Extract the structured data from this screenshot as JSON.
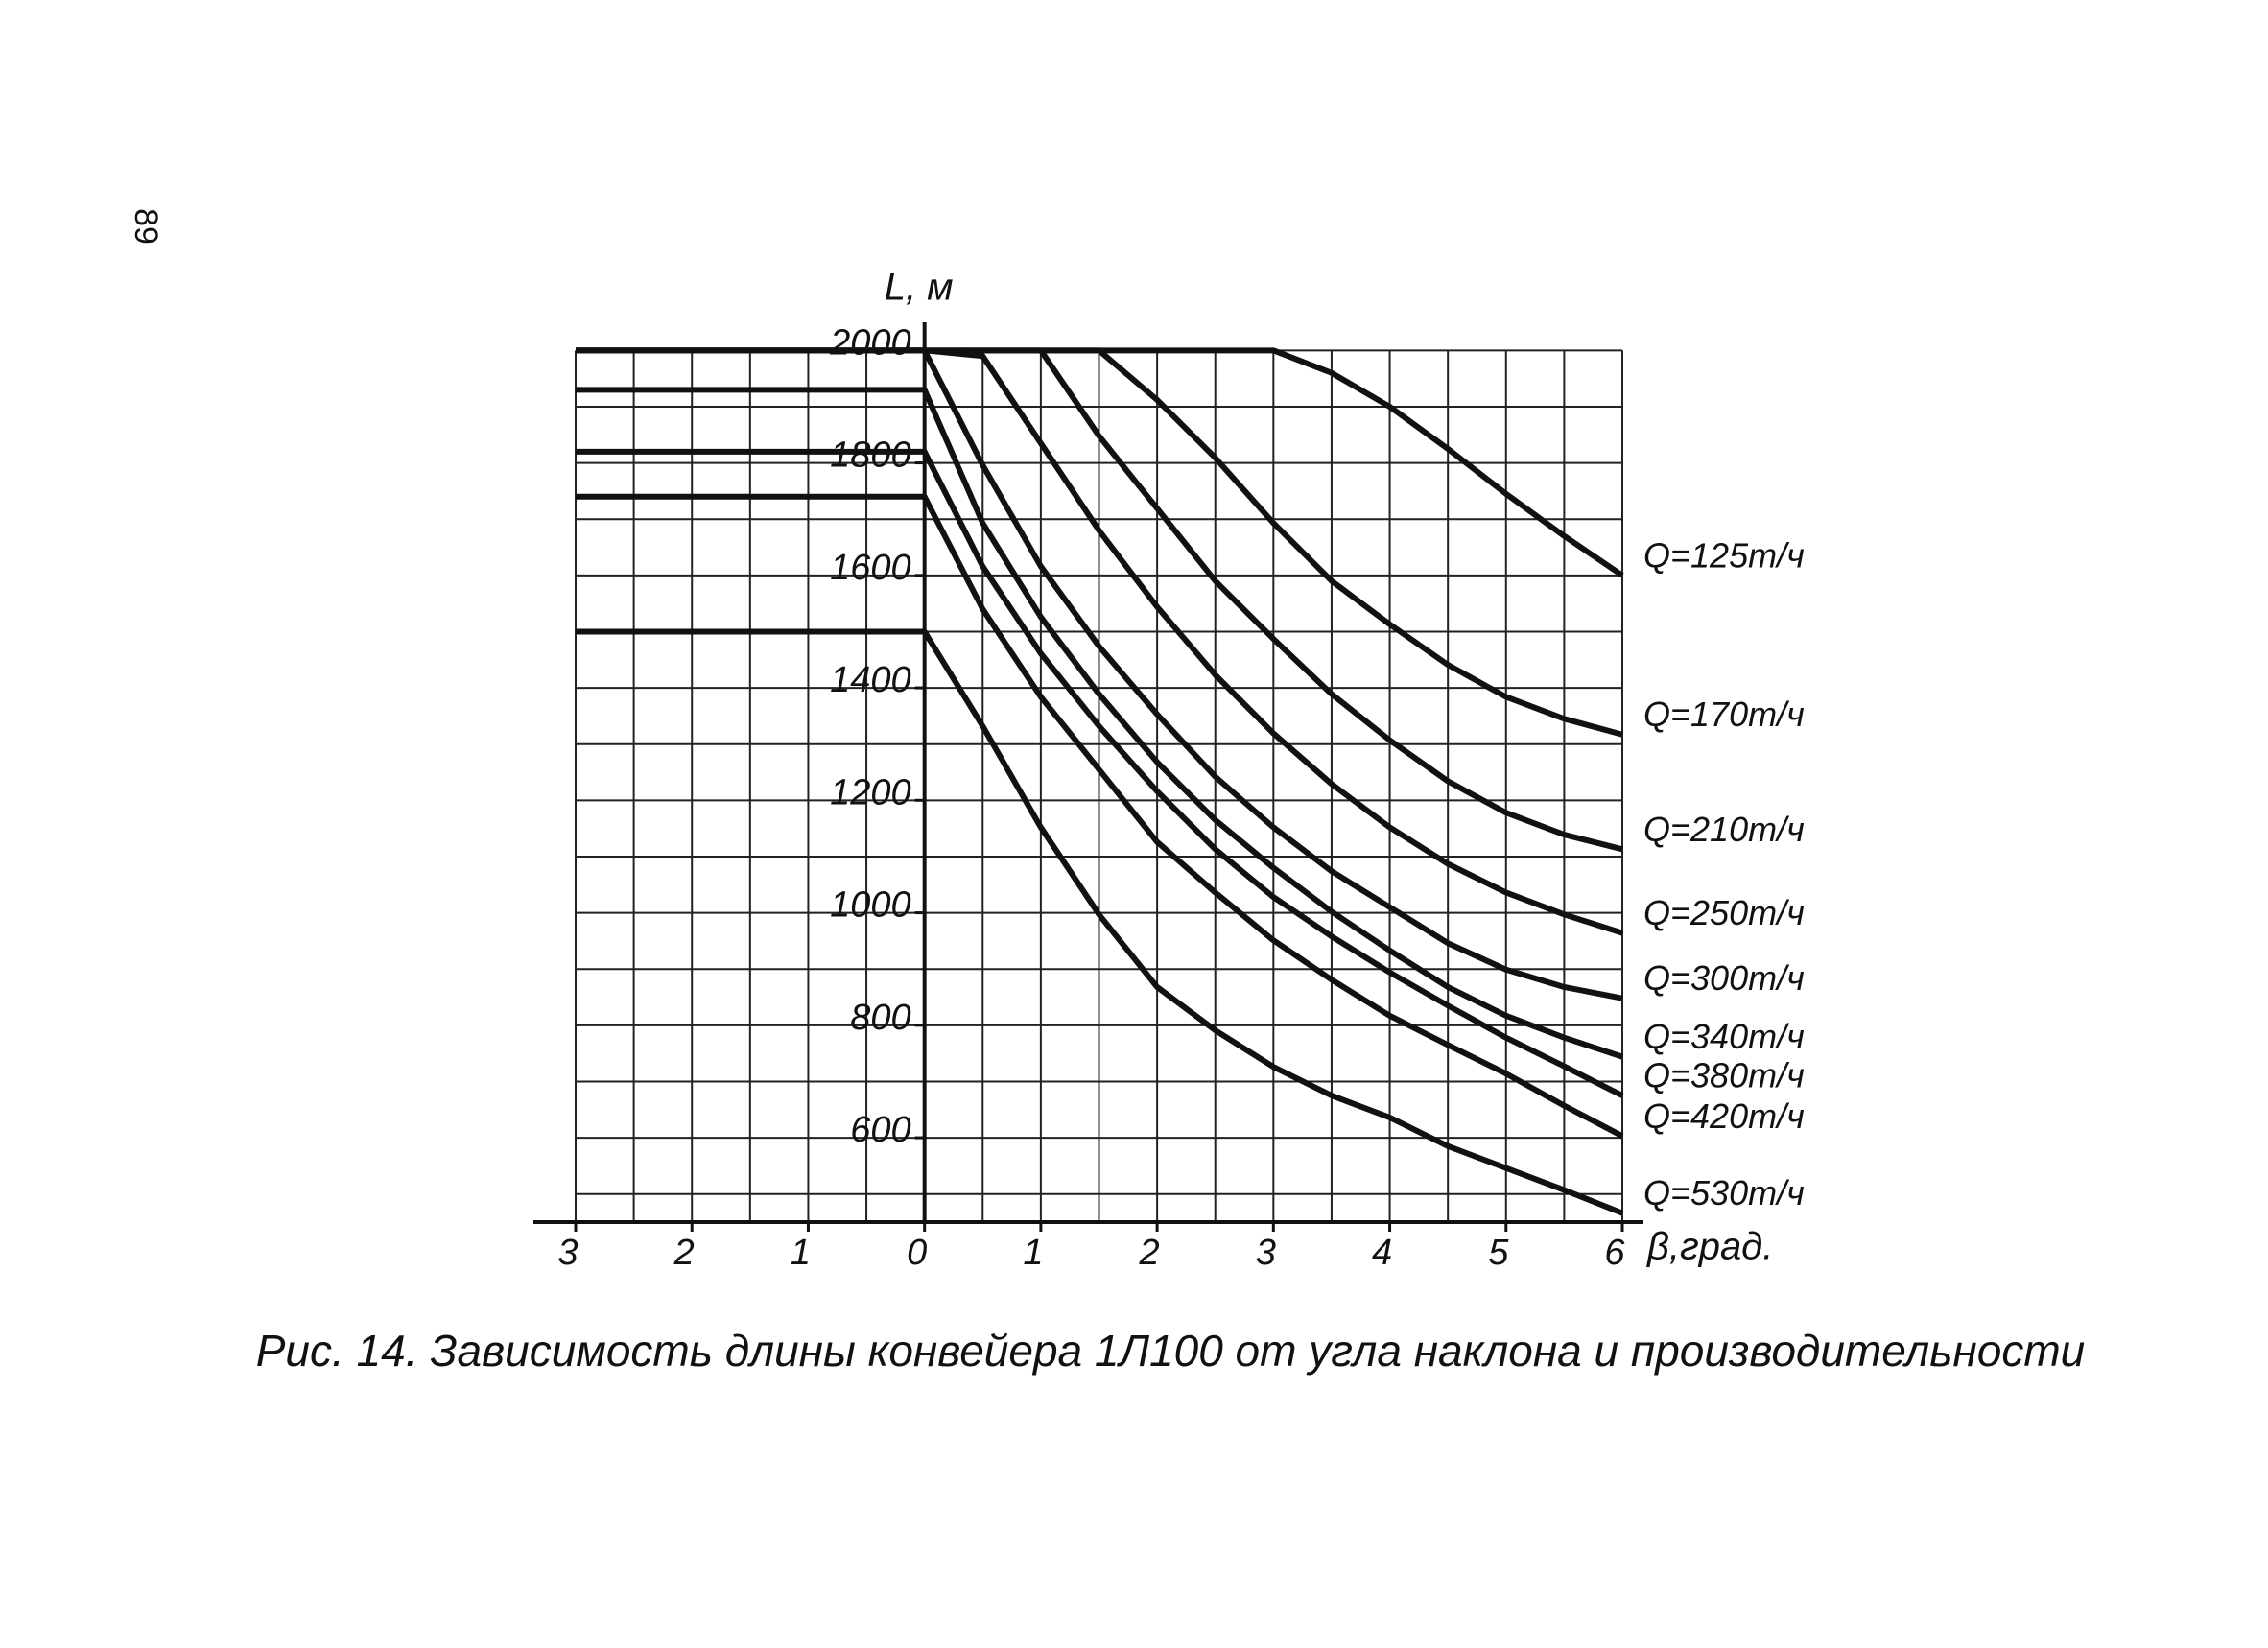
{
  "page_number": "89",
  "chart_data": {
    "type": "line",
    "title": "Рис. 14. Зависимость длины конвейера 1Л100 от угла наклона и производительности",
    "x_label": "β,град.",
    "y_label": "L, м",
    "x": [
      -3,
      0,
      0.5,
      1,
      1.5,
      2,
      2.5,
      3,
      3.5,
      4,
      4.5,
      5,
      5.5,
      6
    ],
    "xlim": [
      -3,
      6
    ],
    "ylim": [
      450,
      2050
    ],
    "xticks": [
      {
        "value": -3,
        "label": "3"
      },
      {
        "value": -2,
        "label": "2"
      },
      {
        "value": -1,
        "label": "1"
      },
      0,
      1,
      2,
      3,
      4,
      5,
      6
    ],
    "yticks": [
      600,
      800,
      1000,
      1200,
      1400,
      1600,
      1800,
      2000
    ],
    "xgrid": [
      -3,
      -2.5,
      -2,
      -1.5,
      -1,
      -0.5,
      0,
      0.5,
      1,
      1.5,
      2,
      2.5,
      3,
      3.5,
      4,
      4.5,
      5,
      5.5,
      6
    ],
    "ygrid": [
      500,
      600,
      700,
      800,
      900,
      1000,
      1100,
      1200,
      1300,
      1400,
      1500,
      1600,
      1700,
      1800,
      1900,
      2000
    ],
    "grid": true,
    "series": [
      {
        "name": "Q=125т/ч",
        "color": "#111111",
        "values": [
          2000,
          2000,
          2000,
          2000,
          2000,
          2000,
          2000,
          2000,
          1960,
          1900,
          1825,
          1745,
          1670,
          1600
        ]
      },
      {
        "name": "Q=170т/ч",
        "color": "#111111",
        "values": [
          2000,
          2000,
          2000,
          2000,
          2000,
          1912,
          1809,
          1693,
          1590,
          1513,
          1441,
          1384,
          1345,
          1317
        ]
      },
      {
        "name": "Q=210т/ч",
        "color": "#111111",
        "values": [
          2000,
          2000,
          2000,
          2000,
          1848,
          1719,
          1590,
          1487,
          1389,
          1307,
          1234,
          1178,
          1139,
          1113
        ]
      },
      {
        "name": "Q=250т/ч",
        "color": "#111111",
        "values": [
          2000,
          2000,
          1990,
          1835,
          1680,
          1544,
          1423,
          1319,
          1229,
          1152,
          1087,
          1036,
          997,
          964
        ]
      },
      {
        "name": "Q=300т/ч",
        "color": "#111111",
        "values": [
          2000,
          2000,
          1796,
          1616,
          1474,
          1353,
          1242,
          1152,
          1074,
          1010,
          946,
          899,
          868,
          848
        ]
      },
      {
        "name": "Q=340т/ч",
        "color": "#111111",
        "values": [
          1930,
          1930,
          1693,
          1526,
          1389,
          1268,
          1165,
          1080,
          1002,
          933,
          868,
          817,
          778,
          744
        ]
      },
      {
        "name": "Q=380т/ч",
        "color": "#111111",
        "values": [
          1820,
          1820,
          1616,
          1461,
          1332,
          1216,
          1113,
          1028,
          958,
          894,
          835,
          778,
          727,
          675
        ]
      },
      {
        "name": "Q=420т/ч",
        "color": "#111111",
        "values": [
          1740,
          1740,
          1540,
          1384,
          1255,
          1126,
          1036,
          951,
          881,
          817,
          765,
          714,
          657,
          603
        ]
      },
      {
        "name": "Q=530т/ч",
        "color": "#111111",
        "values": [
          1500,
          1500,
          1332,
          1152,
          997,
          868,
          791,
          726,
          675,
          636,
          585,
          546,
          507,
          466
        ]
      }
    ]
  }
}
